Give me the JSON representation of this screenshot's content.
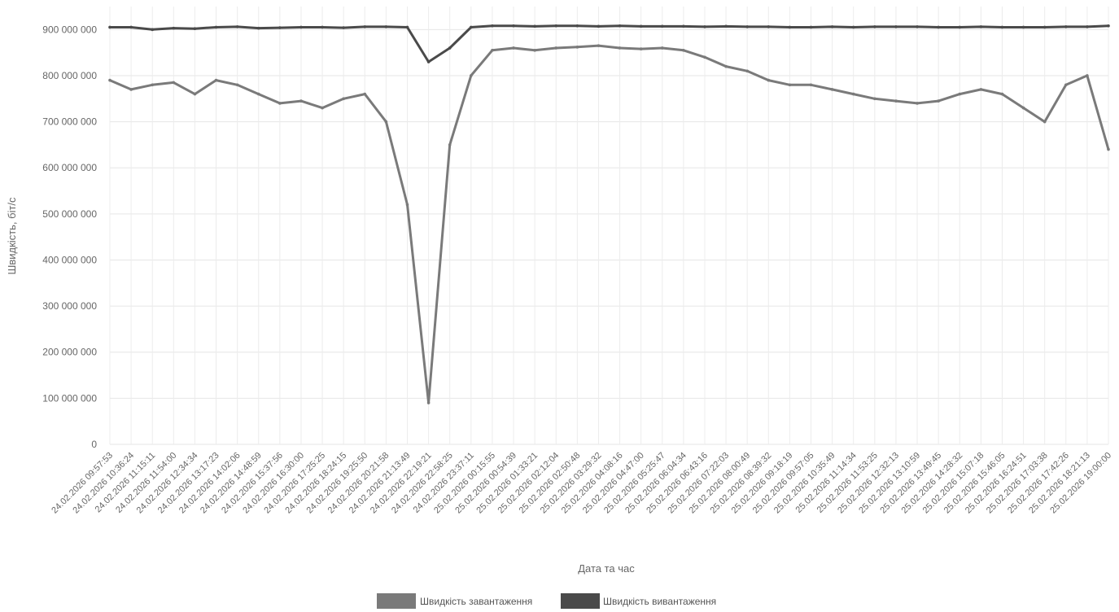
{
  "chart_data": {
    "type": "line",
    "xlabel": "Дата та час",
    "ylabel": "Швидкість, біт/с",
    "ylim": [
      0,
      950000000
    ],
    "y_ticks": [
      0,
      100000000,
      200000000,
      300000000,
      400000000,
      500000000,
      600000000,
      700000000,
      800000000,
      900000000
    ],
    "y_tick_labels": [
      "0",
      "100 000 000",
      "200 000 000",
      "300 000 000",
      "400 000 000",
      "500 000 000",
      "600 000 000",
      "700 000 000",
      "800 000 000",
      "900 000 000"
    ],
    "grid": true,
    "legend_position": "bottom",
    "categories": [
      "24.02.2026 09:57:53",
      "24.02.2026 10:36:24",
      "24.02.2026 11:15:11",
      "24.02.2026 11:54:00",
      "24.02.2026 12:34:34",
      "24.02.2026 13:17:23",
      "24.02.2026 14:02:06",
      "24.02.2026 14:48:59",
      "24.02.2026 15:37:56",
      "24.02.2026 16:30:00",
      "24.02.2026 17:25:25",
      "24.02.2026 18:24:15",
      "24.02.2026 19:25:50",
      "24.02.2026 20:21:58",
      "24.02.2026 21:13:49",
      "24.02.2026 22:19:21",
      "24.02.2026 22:58:25",
      "24.02.2026 23:37:11",
      "25.02.2026 00:15:55",
      "25.02.2026 00:54:39",
      "25.02.2026 01:33:21",
      "25.02.2026 02:12:04",
      "25.02.2026 02:50:48",
      "25.02.2026 03:29:32",
      "25.02.2026 04:08:16",
      "25.02.2026 04:47:00",
      "25.02.2026 05:25:47",
      "25.02.2026 06:04:34",
      "25.02.2026 06:43:16",
      "25.02.2026 07:22:03",
      "25.02.2026 08:00:49",
      "25.02.2026 08:39:32",
      "25.02.2026 09:18:19",
      "25.02.2026 09:57:05",
      "25.02.2026 10:35:49",
      "25.02.2026 11:14:34",
      "25.02.2026 11:53:25",
      "25.02.2026 12:32:13",
      "25.02.2026 13:10:59",
      "25.02.2026 13:49:45",
      "25.02.2026 14:28:32",
      "25.02.2026 15:07:18",
      "25.02.2026 15:46:05",
      "25.02.2026 16:24:51",
      "25.02.2026 17:03:38",
      "25.02.2026 17:42:26",
      "25.02.2026 18:21:13",
      "25.02.2026 19:00:00"
    ],
    "series": [
      {
        "name": "Швидкість завантаження",
        "color": "#7a7a7a",
        "values": [
          790000000,
          770000000,
          780000000,
          785000000,
          760000000,
          790000000,
          780000000,
          760000000,
          740000000,
          745000000,
          730000000,
          750000000,
          760000000,
          700000000,
          520000000,
          90000000,
          650000000,
          800000000,
          855000000,
          860000000,
          855000000,
          860000000,
          862000000,
          865000000,
          860000000,
          858000000,
          860000000,
          855000000,
          840000000,
          820000000,
          810000000,
          790000000,
          780000000,
          780000000,
          770000000,
          760000000,
          750000000,
          745000000,
          740000000,
          745000000,
          760000000,
          770000000,
          760000000,
          730000000,
          700000000,
          780000000,
          800000000,
          640000000
        ]
      },
      {
        "name": "Швидкість вивантаження",
        "color": "#4a4a4a",
        "values": [
          905000000,
          905000000,
          900000000,
          903000000,
          902000000,
          905000000,
          906000000,
          903000000,
          904000000,
          905000000,
          905000000,
          904000000,
          906000000,
          906000000,
          905000000,
          830000000,
          860000000,
          905000000,
          908000000,
          908000000,
          907000000,
          908000000,
          908000000,
          907000000,
          908000000,
          907000000,
          907000000,
          907000000,
          906000000,
          907000000,
          906000000,
          906000000,
          905000000,
          905000000,
          906000000,
          905000000,
          906000000,
          906000000,
          906000000,
          905000000,
          905000000,
          906000000,
          905000000,
          905000000,
          905000000,
          906000000,
          906000000,
          908000000
        ]
      }
    ]
  }
}
